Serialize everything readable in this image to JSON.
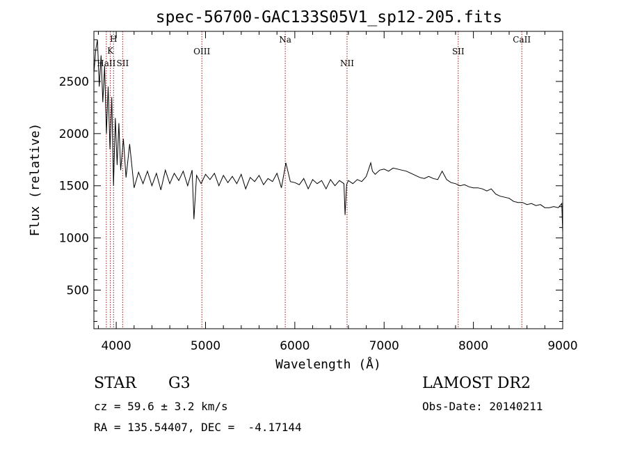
{
  "chart_data": {
    "type": "line",
    "title": "spec-56700-GAC133S05V1_sp12-205.fits",
    "xlabel": "Wavelength (Å)",
    "ylabel": "Flux (relative)",
    "xlim": [
      3750,
      9000
    ],
    "ylim": [
      130,
      2980
    ],
    "x_ticks": [
      4000,
      5000,
      6000,
      7000,
      8000,
      9000
    ],
    "y_ticks": [
      500,
      1000,
      1500,
      2000,
      2500
    ],
    "grid": false,
    "colors": {
      "spectrum": "#000000",
      "lines": "#8b1a1a",
      "axes": "#000000"
    },
    "series": [
      {
        "x": [
          3750,
          3770,
          3790,
          3810,
          3830,
          3850,
          3870,
          3890,
          3910,
          3930,
          3950,
          3970,
          3990,
          4010,
          4030,
          4050,
          4080,
          4110,
          4150,
          4200,
          4250,
          4300,
          4350,
          4400,
          4450,
          4500,
          4550,
          4600,
          4650,
          4700,
          4750,
          4800,
          4850,
          4870,
          4900,
          4950,
          5000,
          5050,
          5100,
          5150,
          5200,
          5250,
          5300,
          5350,
          5400,
          5450,
          5500,
          5550,
          5600,
          5650,
          5700,
          5750,
          5800,
          5850,
          5900,
          5950,
          6000,
          6050,
          6100,
          6150,
          6200,
          6250,
          6300,
          6350,
          6400,
          6450,
          6500,
          6550,
          6563,
          6580,
          6600,
          6650,
          6700,
          6750,
          6800,
          6850,
          6870,
          6900,
          6950,
          7000,
          7050,
          7100,
          7150,
          7200,
          7250,
          7300,
          7350,
          7400,
          7450,
          7500,
          7550,
          7600,
          7650,
          7700,
          7750,
          7800,
          7850,
          7900,
          7950,
          8000,
          8050,
          8100,
          8150,
          8200,
          8250,
          8300,
          8350,
          8400,
          8450,
          8500,
          8550,
          8600,
          8650,
          8700,
          8750,
          8800,
          8850,
          8900,
          8950,
          8990,
          9000
        ],
        "y": [
          2580,
          2800,
          2900,
          2450,
          2750,
          2300,
          2650,
          2000,
          2450,
          1850,
          2350,
          1500,
          2150,
          1700,
          2100,
          1650,
          1950,
          1580,
          1900,
          1480,
          1630,
          1520,
          1640,
          1500,
          1620,
          1460,
          1650,
          1520,
          1620,
          1550,
          1640,
          1500,
          1650,
          1180,
          1600,
          1520,
          1610,
          1560,
          1620,
          1500,
          1600,
          1530,
          1590,
          1520,
          1610,
          1470,
          1580,
          1540,
          1600,
          1510,
          1570,
          1540,
          1620,
          1480,
          1720,
          1540,
          1530,
          1510,
          1570,
          1470,
          1560,
          1520,
          1550,
          1470,
          1560,
          1500,
          1550,
          1520,
          1220,
          1510,
          1550,
          1520,
          1560,
          1540,
          1590,
          1720,
          1640,
          1610,
          1650,
          1660,
          1640,
          1670,
          1660,
          1650,
          1640,
          1620,
          1600,
          1580,
          1570,
          1590,
          1570,
          1560,
          1640,
          1560,
          1530,
          1520,
          1500,
          1510,
          1490,
          1480,
          1480,
          1470,
          1450,
          1470,
          1420,
          1400,
          1390,
          1380,
          1350,
          1340,
          1340,
          1320,
          1330,
          1310,
          1320,
          1290,
          1290,
          1300,
          1290,
          1330,
          1050
        ]
      }
    ],
    "emission_lines": [
      {
        "label": "H",
        "wavelength": 3970
      },
      {
        "label": "K",
        "wavelength": 3934
      },
      {
        "label": "HaII",
        "wavelength": 3889
      },
      {
        "label": "SII",
        "wavelength": 4072
      },
      {
        "label": "OIII",
        "wavelength": 4959
      },
      {
        "label": "Na",
        "wavelength": 5893
      },
      {
        "label": "NII",
        "wavelength": 6585
      },
      {
        "label": "SII",
        "wavelength": 7830
      },
      {
        "label": "CaII",
        "wavelength": 8542
      }
    ]
  },
  "info": {
    "class_label": "STAR",
    "subclass": "G3",
    "survey": "LAMOST DR2",
    "cz": "cz = 59.6 ± 3.2 km/s",
    "obs_date": "Obs-Date: 20140211",
    "coords": "RA = 135.54407, DEC =  -4.17144"
  }
}
